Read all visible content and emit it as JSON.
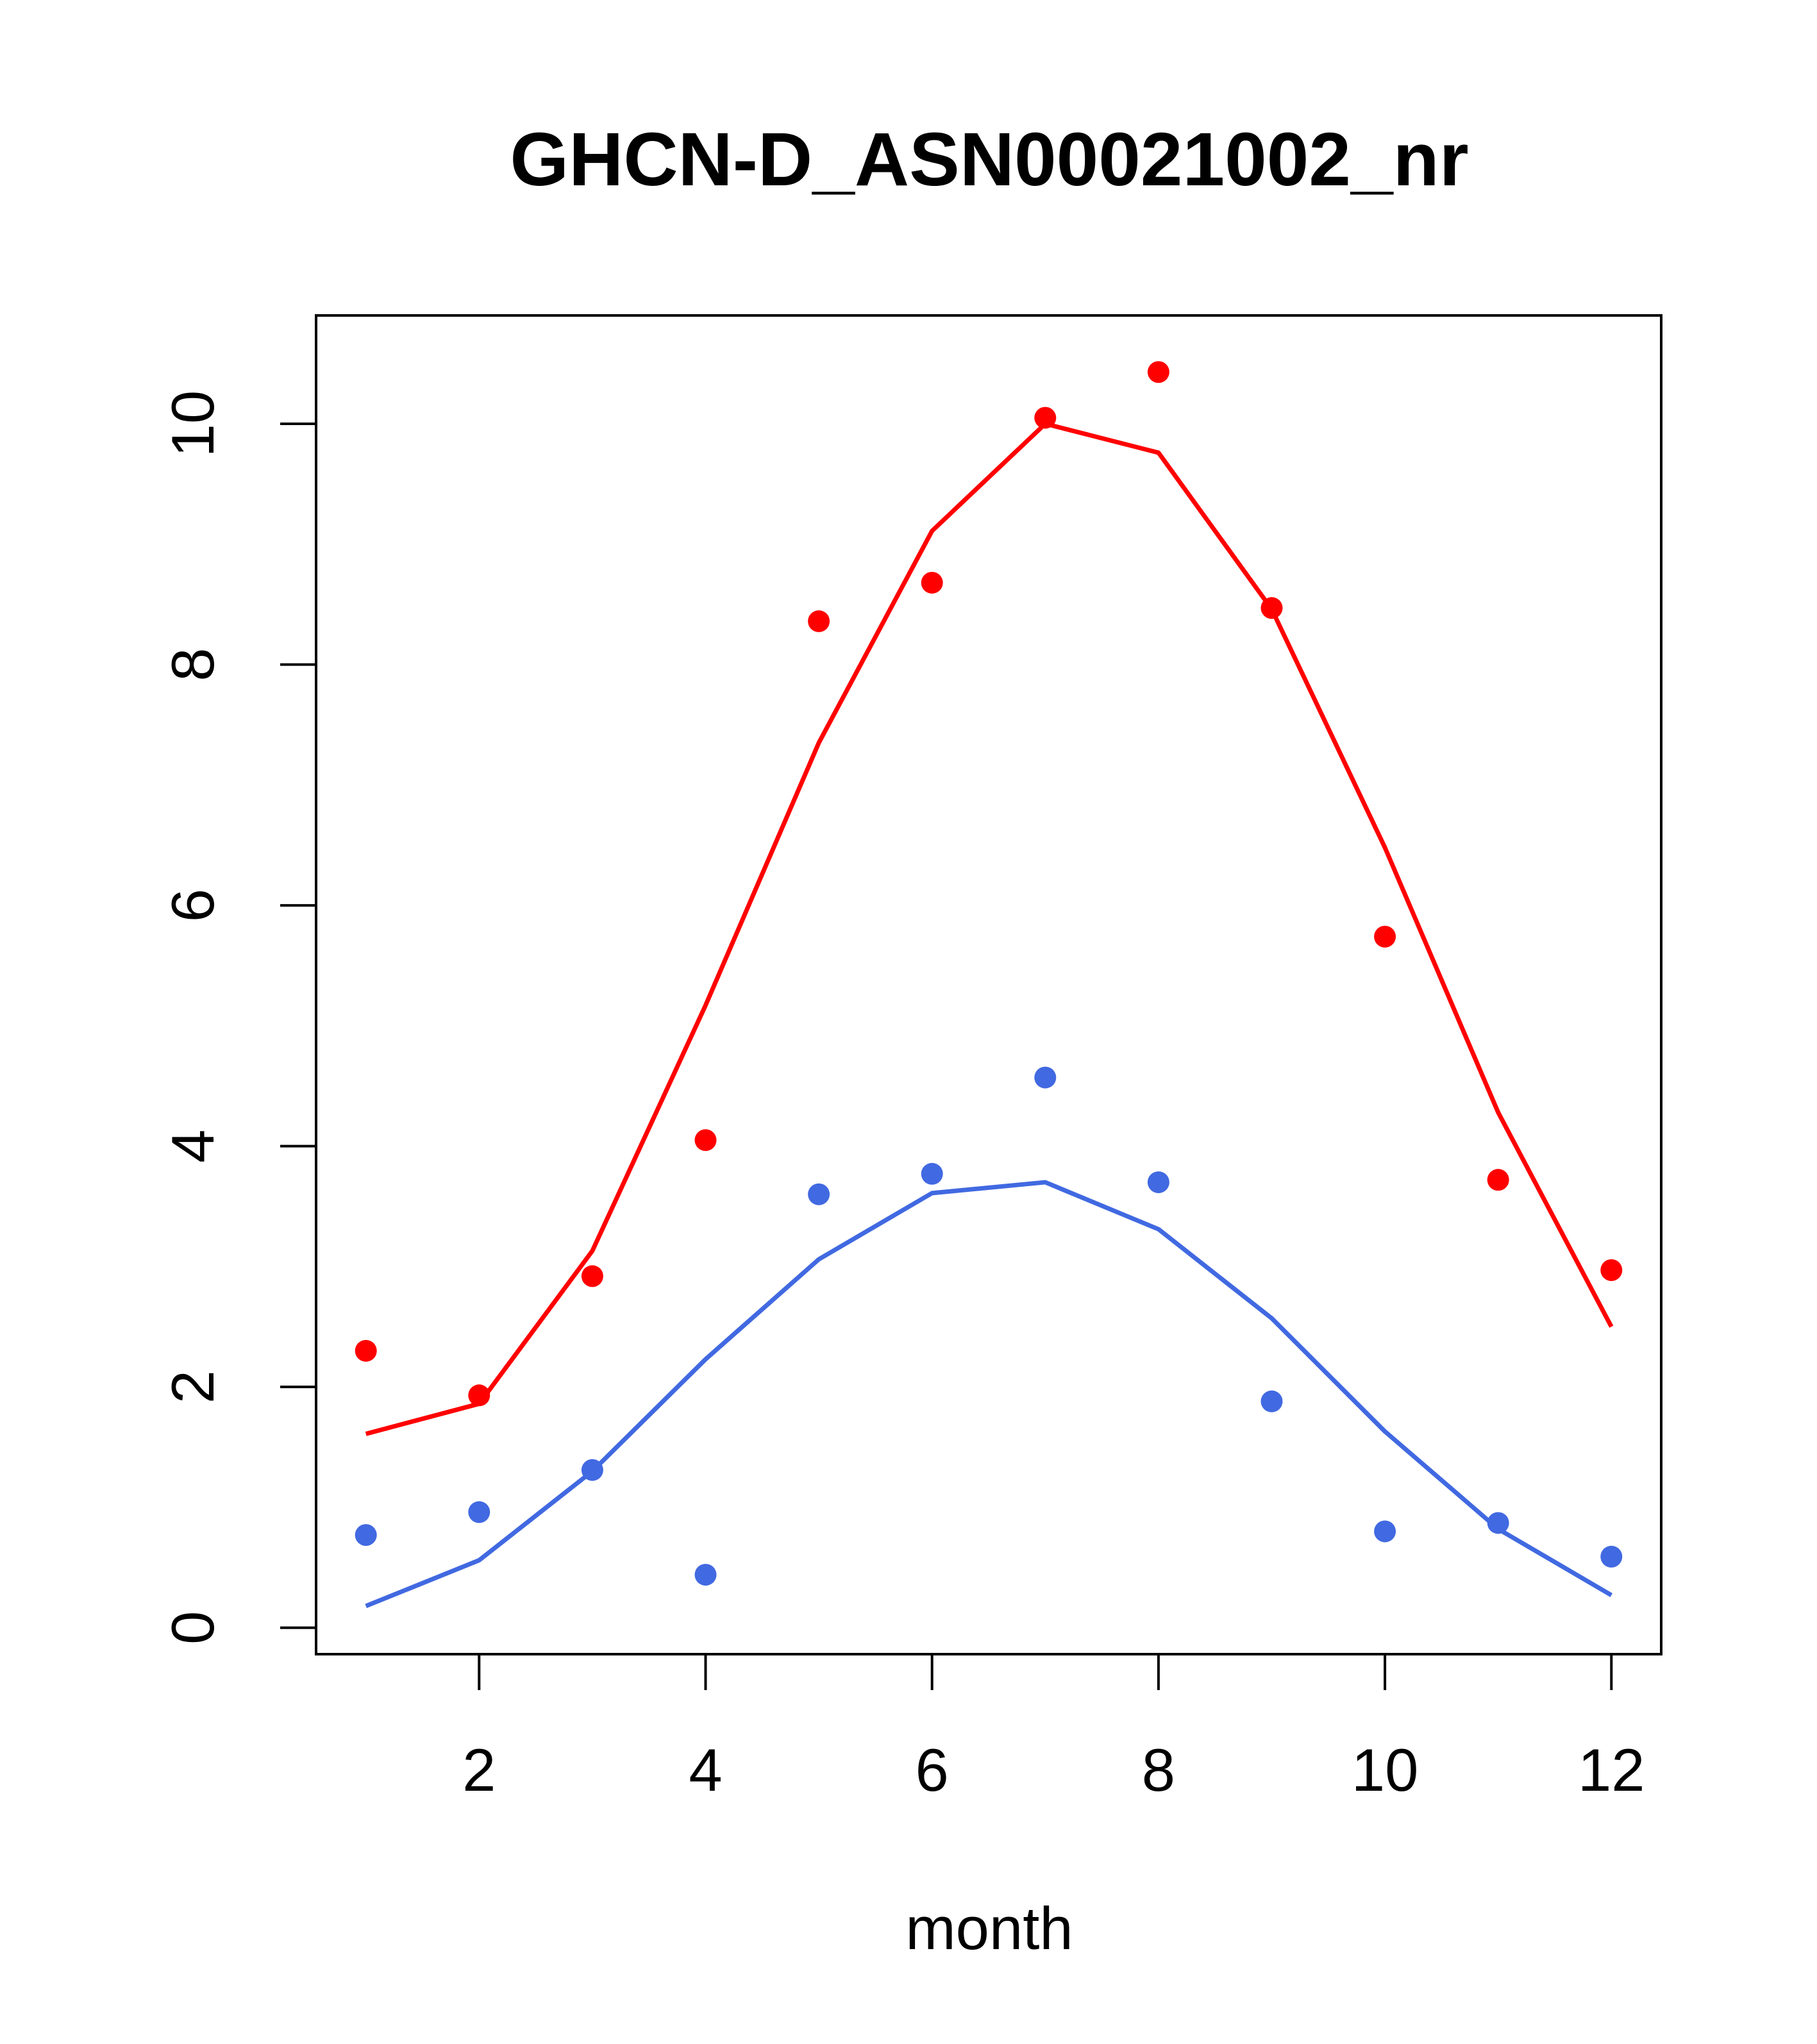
{
  "chart_data": {
    "type": "scatter",
    "title": "GHCN-D_ASN00021002_nr",
    "xlabel": "month",
    "ylabel": "",
    "xlim": [
      0.56,
      12.44
    ],
    "ylim": [
      -0.22,
      10.9
    ],
    "x_ticks": [
      2,
      4,
      6,
      8,
      10,
      12
    ],
    "y_ticks": [
      0,
      2,
      4,
      6,
      8,
      10
    ],
    "grid": false,
    "legend": "none",
    "x": [
      1,
      2,
      3,
      4,
      5,
      6,
      7,
      8,
      9,
      10,
      11,
      12
    ],
    "series": [
      {
        "color": "#ff0000",
        "points": [
          2.3,
          1.93,
          2.92,
          4.05,
          8.36,
          8.68,
          10.05,
          10.43,
          8.47,
          5.74,
          3.72,
          2.97
        ],
        "line": [
          1.61,
          1.86,
          3.13,
          5.17,
          7.35,
          9.11,
          10.0,
          9.76,
          8.46,
          6.48,
          4.28,
          2.5
        ]
      },
      {
        "color": "#4169e1",
        "points": [
          0.77,
          0.96,
          1.31,
          0.44,
          3.6,
          3.77,
          4.57,
          3.7,
          1.88,
          0.8,
          0.87,
          0.59
        ],
        "line": [
          0.18,
          0.56,
          1.3,
          2.23,
          3.06,
          3.61,
          3.7,
          3.31,
          2.57,
          1.63,
          0.82,
          0.27
        ]
      }
    ]
  }
}
